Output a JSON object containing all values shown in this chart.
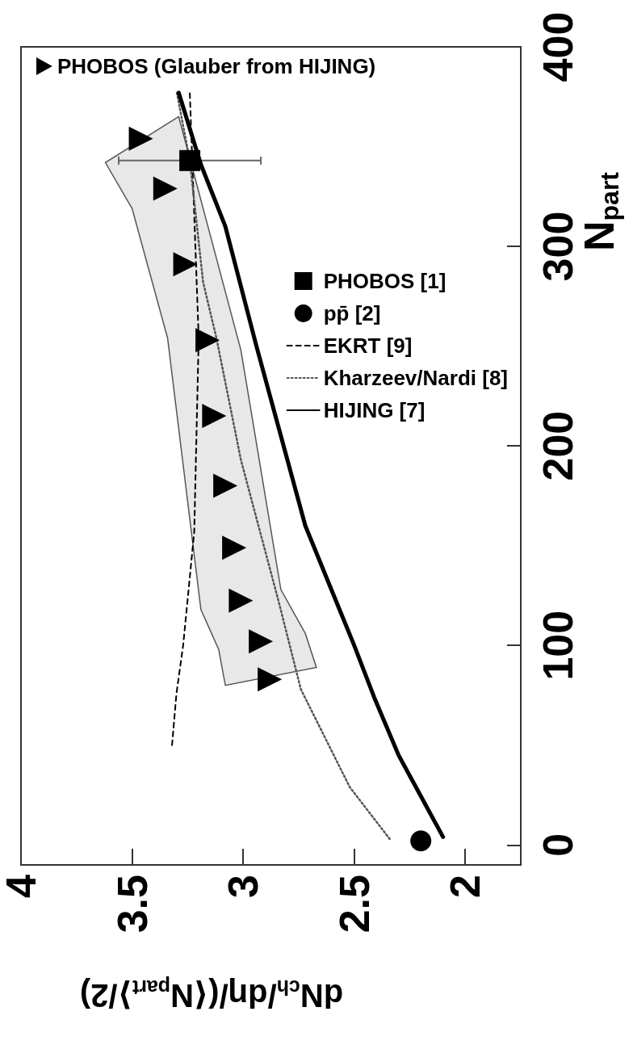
{
  "chart_data": {
    "type": "scatter",
    "xlabel": "dN$_{ch}$/dη/(⟨N$_{part}$⟩/2)",
    "ylabel": "N$_{part}$",
    "xlim": [
      4,
      1.75
    ],
    "xticks": [
      4,
      3.5,
      3,
      2.5,
      2
    ],
    "ylim": [
      -10,
      400
    ],
    "yticks": [
      0,
      100,
      200,
      300,
      400
    ],
    "grid": false,
    "legend": "top right",
    "series": [
      {
        "name": "PHOBOS (Glauber from HIJING)",
        "type": "scatter",
        "marker": "triangle",
        "color": "#000000",
        "x": [
          2.88,
          2.92,
          3.01,
          3.04,
          3.08,
          3.13,
          3.16,
          3.26,
          3.35,
          3.46
        ],
        "values": [
          83,
          102,
          122.5,
          149,
          180,
          215,
          253,
          291,
          329,
          354
        ]
      },
      {
        "type": "area",
        "color": "#e8e8e8",
        "x": [
          3.29,
          3.62,
          3.5,
          3.34,
          3.19,
          3.11,
          3.08,
          2.67,
          2.72,
          2.83,
          3.01
        ],
        "values": [
          365,
          342,
          319,
          254,
          118,
          98,
          80,
          89,
          106,
          128,
          248
        ]
      },
      {
        "name": "PHOBOS [1]",
        "type": "scatter",
        "marker": "square",
        "color": "#000000",
        "x": [
          3.24
        ],
        "values": [
          343
        ],
        "xerrors": [
          0.32
        ]
      },
      {
        "name": "pp̄ [2]",
        "type": "scatter",
        "marker": "circle",
        "color": "#000000",
        "x": [
          2.2
        ],
        "values": [
          2
        ]
      },
      {
        "name": "EKRT [9]",
        "type": "line",
        "marker": "none",
        "line_style": "dashed",
        "color": "#000000",
        "x": [
          3.32,
          3.3,
          3.27,
          3.22,
          3.2,
          3.24
        ],
        "values": [
          50,
          76,
          100,
          157,
          254,
          377
        ]
      },
      {
        "name": "Kharzeev/Nardi [8]",
        "type": "line",
        "marker": "none",
        "line_style": "dotted",
        "color": "#555555",
        "x": [
          2.34,
          2.52,
          2.74,
          2.84,
          3.01,
          3.12,
          3.18,
          3.24,
          3.3
        ],
        "values": [
          3,
          29,
          78,
          122,
          193,
          254,
          282,
          343,
          378
        ]
      },
      {
        "name": "HIJING [7]",
        "type": "line",
        "marker": "none",
        "line_style": "solid",
        "color": "#000000",
        "x": [
          2.1,
          2.3,
          2.41,
          2.5,
          2.72,
          2.94,
          3.08,
          3.19,
          3.29
        ],
        "values": [
          4,
          45,
          74,
          100,
          160,
          250,
          310,
          341,
          377
        ]
      }
    ]
  }
}
